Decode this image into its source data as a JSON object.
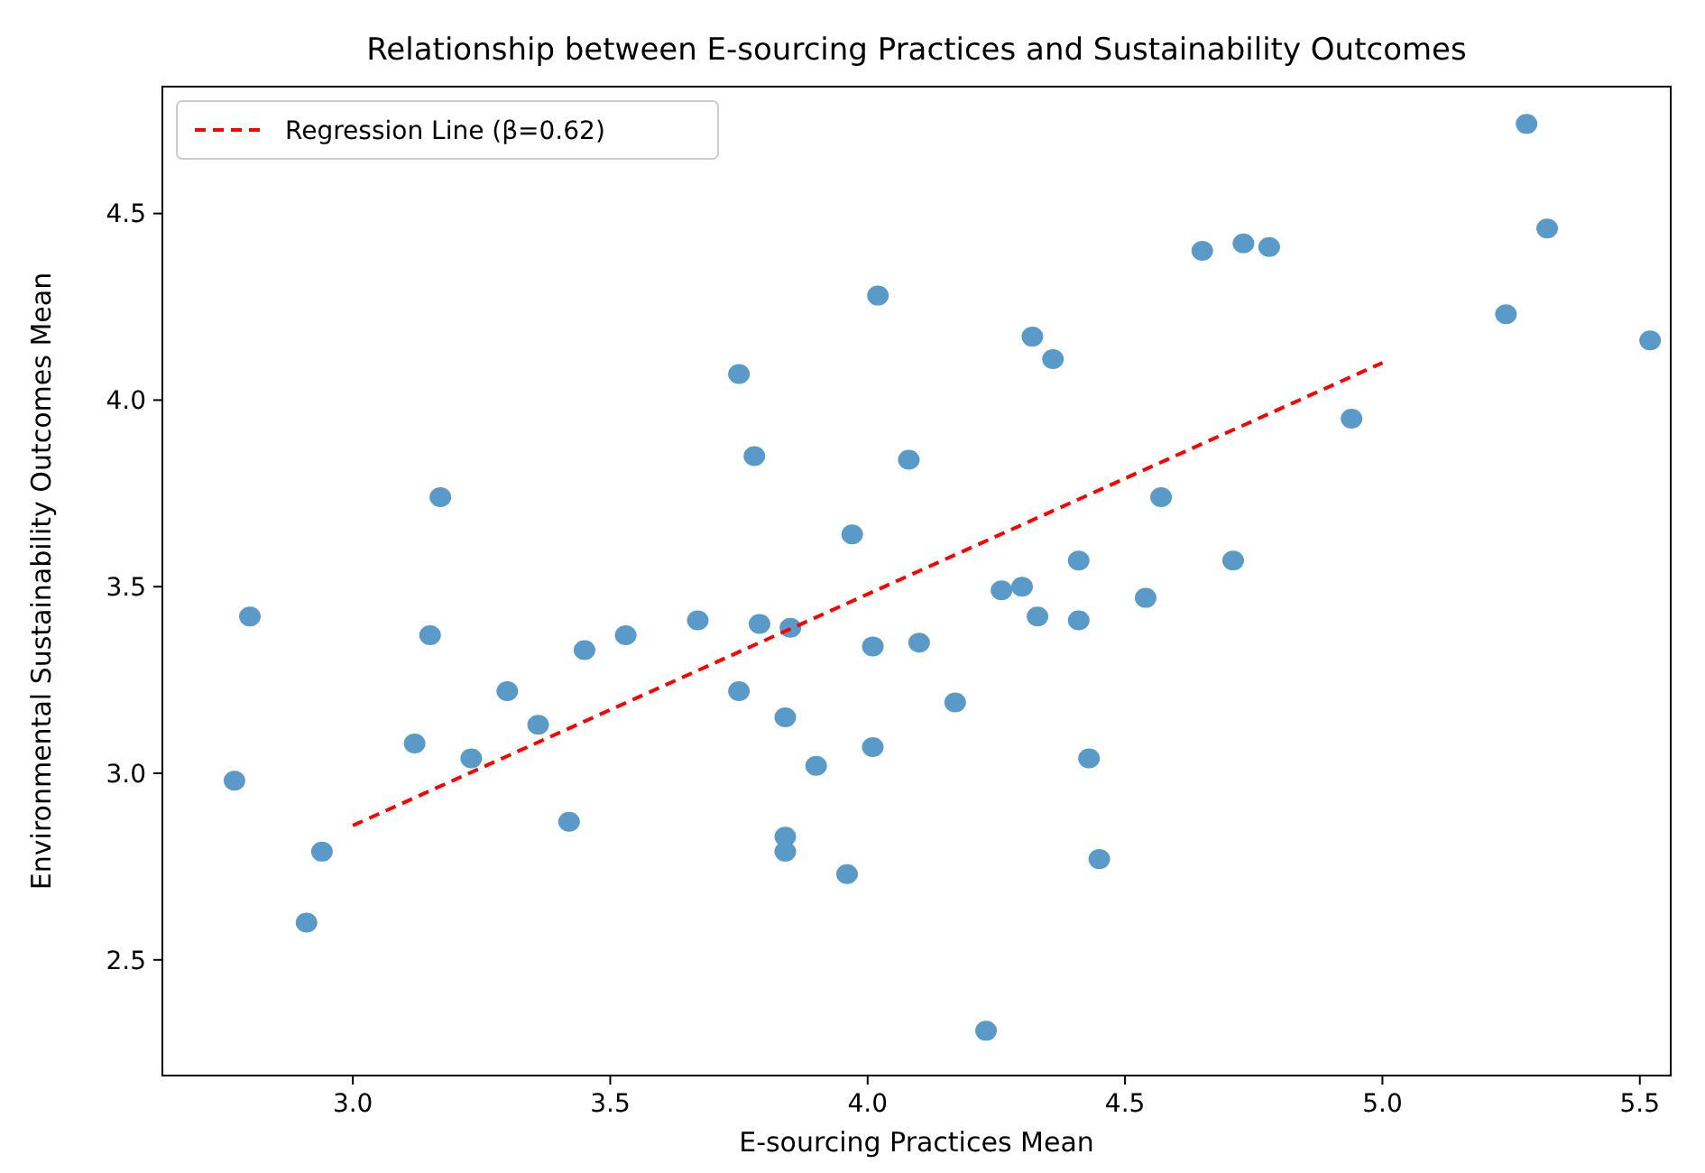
{
  "chart_data": {
    "type": "scatter",
    "title": "Relationship between E-sourcing Practices and Sustainability Outcomes",
    "xlabel": "E-sourcing Practices Mean",
    "ylabel": "Environmental Sustainability Outcomes Mean",
    "xlim": [
      2.63,
      5.56
    ],
    "ylim": [
      2.19,
      4.84
    ],
    "xticks": [
      {
        "value": 3,
        "label": "3.0"
      },
      {
        "value": 3.5,
        "label": "3.5"
      },
      {
        "value": 4,
        "label": "4.0"
      },
      {
        "value": 4.5,
        "label": "4.5"
      },
      {
        "value": 5,
        "label": "5.0"
      },
      {
        "value": 5.5,
        "label": "5.5"
      }
    ],
    "yticks": [
      {
        "value": 2.5,
        "label": "2.5"
      },
      {
        "value": 3,
        "label": "3.0"
      },
      {
        "value": 3.5,
        "label": "3.5"
      },
      {
        "value": 4,
        "label": "4.0"
      },
      {
        "value": 4.5,
        "label": "4.5"
      }
    ],
    "grid": false,
    "legend": "top left",
    "marker": "circle",
    "series": [
      {
        "color": "#5a9ac8",
        "x": [
          2.77,
          2.8,
          2.91,
          2.94,
          3.12,
          3.15,
          3.17,
          3.23,
          3.3,
          3.36,
          3.42,
          3.45,
          3.53,
          3.67,
          3.75,
          3.75,
          3.78,
          3.79,
          3.84,
          3.84,
          3.84,
          3.85,
          3.9,
          3.96,
          3.97,
          4.01,
          4.01,
          4.02,
          4.08,
          4.1,
          4.17,
          4.23,
          4.26,
          4.3,
          4.32,
          4.33,
          4.36,
          4.41,
          4.41,
          4.43,
          4.45,
          4.54,
          4.57,
          4.65,
          4.71,
          4.73,
          4.78,
          4.94,
          5.24,
          5.28,
          5.32,
          5.52
        ],
        "values": [
          2.98,
          3.42,
          2.6,
          2.79,
          3.08,
          3.37,
          3.74,
          3.04,
          3.22,
          3.13,
          2.87,
          3.33,
          3.37,
          3.41,
          3.22,
          4.07,
          3.85,
          3.4,
          3.15,
          2.83,
          2.79,
          3.39,
          3.02,
          2.73,
          3.64,
          3.34,
          3.07,
          4.28,
          3.84,
          3.35,
          3.19,
          2.31,
          3.49,
          3.5,
          4.17,
          3.42,
          4.11,
          3.41,
          3.57,
          3.04,
          2.77,
          3.47,
          3.74,
          4.4,
          3.57,
          4.42,
          4.41,
          3.95,
          4.23,
          4.74,
          4.46,
          4.16
        ]
      },
      {
        "type": "line",
        "name": "Regression Line (β=0.62)",
        "color": "#ff0000",
        "line_style": "dashed",
        "marker": "none",
        "x": [
          3.0,
          5.0
        ],
        "values": [
          2.86,
          4.1
        ]
      }
    ]
  }
}
